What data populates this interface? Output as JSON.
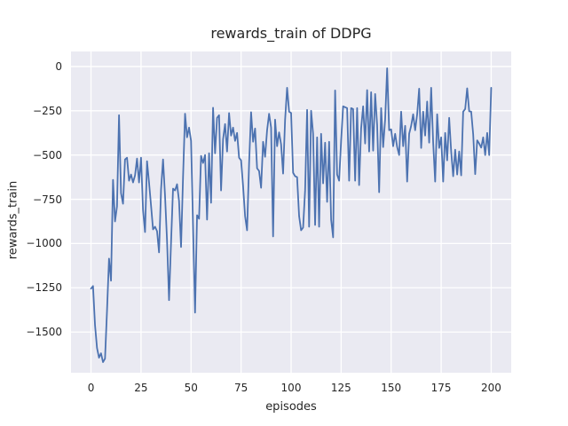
{
  "title": "rewards_train of DDPG",
  "colors": {
    "line": "#4c72b0",
    "plot_background": "#eaeaf2",
    "grid": "#ffffff",
    "text": "#262626",
    "figure_background": "#ffffff"
  },
  "chart_data": {
    "type": "line",
    "title": "rewards_train of DDPG",
    "xlabel": "episodes",
    "ylabel": "rewards_train",
    "legend": null,
    "grid": true,
    "xlim": [
      -10,
      210
    ],
    "ylim": [
      -1730,
      85
    ],
    "xticks": [
      0,
      25,
      50,
      75,
      100,
      125,
      150,
      175,
      200
    ],
    "xtick_labels": [
      "0",
      "25",
      "50",
      "75",
      "100",
      "125",
      "150",
      "175",
      "200"
    ],
    "yticks": [
      0,
      -250,
      -500,
      -750,
      -1000,
      -1250,
      -1500
    ],
    "ytick_labels": [
      "0",
      "−250",
      "−500",
      "−750",
      "−1000",
      "−1250",
      "−1500"
    ],
    "x_start": 0,
    "x_step": 1,
    "series": [
      {
        "name": "rewards_train",
        "values": [
          -1255,
          -1240,
          -1460,
          -1590,
          -1645,
          -1620,
          -1670,
          -1650,
          -1380,
          -1085,
          -1210,
          -640,
          -875,
          -790,
          -275,
          -715,
          -775,
          -525,
          -515,
          -645,
          -610,
          -655,
          -615,
          -520,
          -655,
          -515,
          -810,
          -935,
          -535,
          -655,
          -785,
          -920,
          -905,
          -930,
          -1050,
          -695,
          -525,
          -730,
          -985,
          -1320,
          -995,
          -690,
          -700,
          -665,
          -760,
          -1020,
          -625,
          -267,
          -400,
          -345,
          -420,
          -905,
          -1390,
          -840,
          -860,
          -505,
          -545,
          -500,
          -865,
          -490,
          -770,
          -233,
          -490,
          -290,
          -275,
          -700,
          -410,
          -325,
          -480,
          -263,
          -390,
          -345,
          -420,
          -375,
          -515,
          -530,
          -675,
          -845,
          -925,
          -550,
          -258,
          -425,
          -350,
          -575,
          -590,
          -685,
          -425,
          -510,
          -360,
          -267,
          -345,
          -960,
          -300,
          -450,
          -372,
          -440,
          -605,
          -300,
          -120,
          -255,
          -262,
          -600,
          -620,
          -625,
          -845,
          -925,
          -910,
          -700,
          -245,
          -905,
          -250,
          -380,
          -895,
          -400,
          -905,
          -380,
          -660,
          -430,
          -765,
          -425,
          -865,
          -965,
          -135,
          -610,
          -645,
          -420,
          -225,
          -230,
          -235,
          -645,
          -235,
          -240,
          -645,
          -235,
          -670,
          -350,
          -225,
          -435,
          -133,
          -480,
          -145,
          -475,
          -155,
          -330,
          -710,
          -235,
          -455,
          -300,
          -10,
          -360,
          -355,
          -450,
          -380,
          -455,
          -500,
          -255,
          -450,
          -335,
          -650,
          -380,
          -335,
          -270,
          -360,
          -270,
          -125,
          -460,
          -255,
          -390,
          -198,
          -430,
          -120,
          -430,
          -650,
          -270,
          -460,
          -400,
          -650,
          -375,
          -530,
          -290,
          -480,
          -620,
          -470,
          -610,
          -480,
          -615,
          -255,
          -240,
          -123,
          -253,
          -255,
          -383,
          -608,
          -417,
          -435,
          -458,
          -400,
          -500,
          -375,
          -500,
          -120
        ]
      }
    ]
  }
}
